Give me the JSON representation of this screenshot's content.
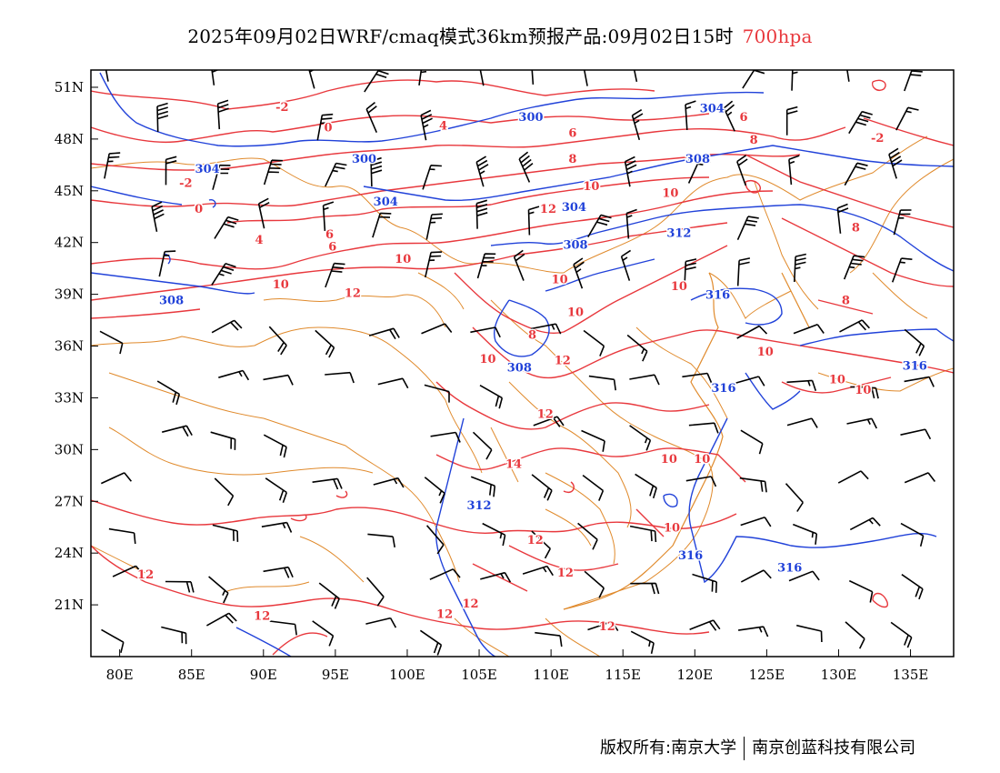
{
  "title": {
    "main": "2025年09月02日WRF/cmaq模式36km预报产品:09月02日15时",
    "level": "700hpa",
    "level_color": "#e8383d"
  },
  "axes": {
    "lon_labels": [
      "80E",
      "85E",
      "90E",
      "95E",
      "100E",
      "105E",
      "110E",
      "115E",
      "120E",
      "125E",
      "130E",
      "135E"
    ],
    "lat_labels": [
      "51N",
      "48N",
      "45N",
      "42N",
      "39N",
      "36N",
      "33N",
      "30N",
      "27N",
      "24N",
      "21N"
    ]
  },
  "map_extent": {
    "lon_min": 78,
    "lon_max": 138,
    "lat_min": 18,
    "lat_max": 52
  },
  "colors": {
    "temperature": "#e8383d",
    "height": "#2142d9",
    "border": "#e08a2c",
    "wind": "#000000"
  },
  "contour_labels": {
    "temperature": [
      {
        "text": "-2",
        "lon": 91.3,
        "lat": 49.9
      },
      {
        "text": "0",
        "lon": 94.5,
        "lat": 48.7
      },
      {
        "text": "4",
        "lon": 102.5,
        "lat": 48.8
      },
      {
        "text": "6",
        "lon": 111.5,
        "lat": 48.4
      },
      {
        "text": "8",
        "lon": 111.5,
        "lat": 46.9
      },
      {
        "text": "10",
        "lon": 112.8,
        "lat": 45.3
      },
      {
        "text": "12",
        "lon": 109.8,
        "lat": 44.0
      },
      {
        "text": "-2",
        "lon": 84.6,
        "lat": 45.5
      },
      {
        "text": "0",
        "lon": 85.5,
        "lat": 44.0
      },
      {
        "text": "4",
        "lon": 89.7,
        "lat": 42.2
      },
      {
        "text": "6",
        "lon": 94.6,
        "lat": 42.5
      },
      {
        "text": "6",
        "lon": 94.8,
        "lat": 41.8
      },
      {
        "text": "10",
        "lon": 91.2,
        "lat": 39.6
      },
      {
        "text": "12",
        "lon": 96.2,
        "lat": 39.1
      },
      {
        "text": "10",
        "lon": 99.7,
        "lat": 41.1
      },
      {
        "text": "10",
        "lon": 110.6,
        "lat": 39.9
      },
      {
        "text": "10",
        "lon": 111.7,
        "lat": 38.0
      },
      {
        "text": "8",
        "lon": 108.7,
        "lat": 36.7
      },
      {
        "text": "10",
        "lon": 105.6,
        "lat": 35.3
      },
      {
        "text": "12",
        "lon": 110.8,
        "lat": 35.2
      },
      {
        "text": "12",
        "lon": 109.6,
        "lat": 32.1
      },
      {
        "text": "14",
        "lon": 107.4,
        "lat": 29.2
      },
      {
        "text": "10",
        "lon": 118.2,
        "lat": 29.5
      },
      {
        "text": "10",
        "lon": 120.5,
        "lat": 29.5
      },
      {
        "text": "10",
        "lon": 118.4,
        "lat": 25.5
      },
      {
        "text": "12",
        "lon": 108.9,
        "lat": 24.8
      },
      {
        "text": "12",
        "lon": 111.0,
        "lat": 22.9
      },
      {
        "text": "12",
        "lon": 81.8,
        "lat": 22.8
      },
      {
        "text": "12",
        "lon": 89.9,
        "lat": 20.4
      },
      {
        "text": "12",
        "lon": 102.6,
        "lat": 20.5
      },
      {
        "text": "12",
        "lon": 104.4,
        "lat": 21.1
      },
      {
        "text": "12",
        "lon": 113.9,
        "lat": 19.8
      },
      {
        "text": "10",
        "lon": 118.3,
        "lat": 44.9
      },
      {
        "text": "10",
        "lon": 118.9,
        "lat": 39.5
      },
      {
        "text": "10",
        "lon": 124.9,
        "lat": 35.7
      },
      {
        "text": "10",
        "lon": 129.9,
        "lat": 34.1
      },
      {
        "text": "10",
        "lon": 131.7,
        "lat": 33.5
      },
      {
        "text": "8",
        "lon": 124.1,
        "lat": 48.0
      },
      {
        "text": "8",
        "lon": 131.2,
        "lat": 42.9
      },
      {
        "text": "8",
        "lon": 130.5,
        "lat": 38.7
      },
      {
        "text": "6",
        "lon": 123.4,
        "lat": 49.3
      },
      {
        "text": "-2",
        "lon": 132.7,
        "lat": 48.1
      }
    ],
    "height": [
      {
        "text": "300",
        "lon": 108.6,
        "lat": 49.3
      },
      {
        "text": "300",
        "lon": 97.0,
        "lat": 46.9
      },
      {
        "text": "304",
        "lon": 86.1,
        "lat": 46.3
      },
      {
        "text": "304",
        "lon": 98.5,
        "lat": 44.4
      },
      {
        "text": "304",
        "lon": 111.6,
        "lat": 44.1
      },
      {
        "text": "308",
        "lon": 83.6,
        "lat": 38.7
      },
      {
        "text": "308",
        "lon": 111.7,
        "lat": 41.9
      },
      {
        "text": "308",
        "lon": 107.8,
        "lat": 34.8
      },
      {
        "text": "312",
        "lon": 118.9,
        "lat": 42.6
      },
      {
        "text": "312",
        "lon": 105.0,
        "lat": 26.8
      },
      {
        "text": "316",
        "lon": 121.6,
        "lat": 39.0
      },
      {
        "text": "316",
        "lon": 122.0,
        "lat": 33.6
      },
      {
        "text": "316",
        "lon": 119.7,
        "lat": 23.9
      },
      {
        "text": "316",
        "lon": 126.6,
        "lat": 23.2
      },
      {
        "text": "316",
        "lon": 135.3,
        "lat": 34.9
      },
      {
        "text": "304",
        "lon": 121.2,
        "lat": 49.8
      },
      {
        "text": "308",
        "lon": 120.2,
        "lat": 46.9
      }
    ]
  },
  "footer": {
    "left": "版权所有:南京大学",
    "right": "南京创蓝科技有限公司"
  }
}
